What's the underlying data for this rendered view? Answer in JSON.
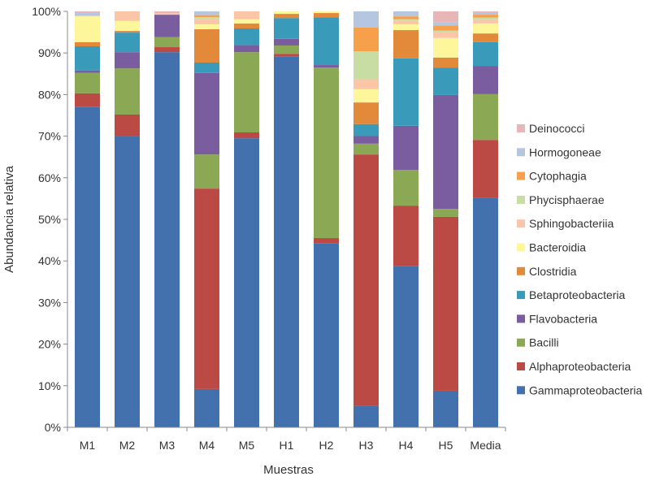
{
  "chart_data": {
    "type": "bar",
    "stacked": true,
    "title": "",
    "xlabel": "Muestras",
    "ylabel": "Abundancia relativa",
    "ylim": [
      0,
      100
    ],
    "yticks": [
      "0%",
      "10%",
      "20%",
      "30%",
      "40%",
      "50%",
      "60%",
      "70%",
      "80%",
      "90%",
      "100%"
    ],
    "grid": false,
    "legend_position": "right",
    "categories": [
      "M1",
      "M2",
      "M3",
      "M4",
      "M5",
      "H1",
      "H2",
      "H3",
      "H4",
      "H5",
      "Media"
    ],
    "series": [
      {
        "name": "Gammaproteobacteria",
        "color": "#4271ae",
        "values": [
          77.0,
          70.1,
          90.2,
          9.2,
          69.5,
          89.1,
          44.3,
          5.1,
          38.7,
          8.8,
          55.1
        ]
      },
      {
        "name": "Alphaproteobacteria",
        "color": "#bb4a45",
        "values": [
          3.3,
          5.1,
          1.2,
          48.2,
          1.4,
          0.7,
          1.2,
          60.5,
          14.6,
          41.8,
          14.0
        ]
      },
      {
        "name": "Bacilli",
        "color": "#8ba855",
        "values": [
          4.9,
          11.1,
          2.4,
          8.2,
          19.3,
          2.0,
          41.0,
          2.6,
          8.6,
          1.9,
          11.0
        ]
      },
      {
        "name": "Flavobacteria",
        "color": "#7a5d9e",
        "values": [
          0.6,
          3.9,
          5.4,
          19.6,
          1.6,
          1.6,
          0.6,
          1.9,
          10.6,
          27.4,
          6.8
        ]
      },
      {
        "name": "Betaproteobacteria",
        "color": "#3a9ab9",
        "values": [
          5.8,
          4.7,
          0,
          2.5,
          4.1,
          5.0,
          11.5,
          2.8,
          16.2,
          6.6,
          5.7
        ]
      },
      {
        "name": "Clostridia",
        "color": "#e2893a",
        "values": [
          1.0,
          0.4,
          0,
          8.0,
          1.2,
          1.0,
          1.0,
          5.2,
          6.8,
          2.4,
          2.1
        ]
      },
      {
        "name": "Bacteroidia",
        "color": "#fdf69a",
        "values": [
          6.2,
          2.4,
          0,
          1.2,
          1.0,
          0.6,
          0.4,
          3.2,
          1.4,
          4.7,
          2.4
        ]
      },
      {
        "name": "Sphingobacteriia",
        "color": "#fbc5a7",
        "values": [
          0.2,
          2.3,
          0.4,
          1.2,
          1.9,
          0,
          0,
          2.3,
          0.8,
          1.4,
          0.9
        ]
      },
      {
        "name": "Phycisphaerae",
        "color": "#c8dda4",
        "values": [
          0,
          0,
          0,
          0.5,
          0,
          0,
          0,
          6.8,
          0.4,
          0.4,
          0.5
        ]
      },
      {
        "name": "Cytophagia",
        "color": "#f7a04c",
        "values": [
          0,
          0,
          0,
          0.5,
          0,
          0,
          0,
          5.7,
          0.7,
          1.2,
          0.7
        ]
      },
      {
        "name": "Hormogoneae",
        "color": "#b5c6e0",
        "values": [
          0.6,
          0,
          0,
          0.9,
          0,
          0,
          0,
          3.9,
          1.2,
          0.7,
          0.5
        ]
      },
      {
        "name": "Deinococci",
        "color": "#e8b6b7",
        "values": [
          0.4,
          0,
          0.4,
          0,
          0,
          0,
          0,
          0,
          0,
          2.7,
          0.3
        ]
      }
    ]
  }
}
